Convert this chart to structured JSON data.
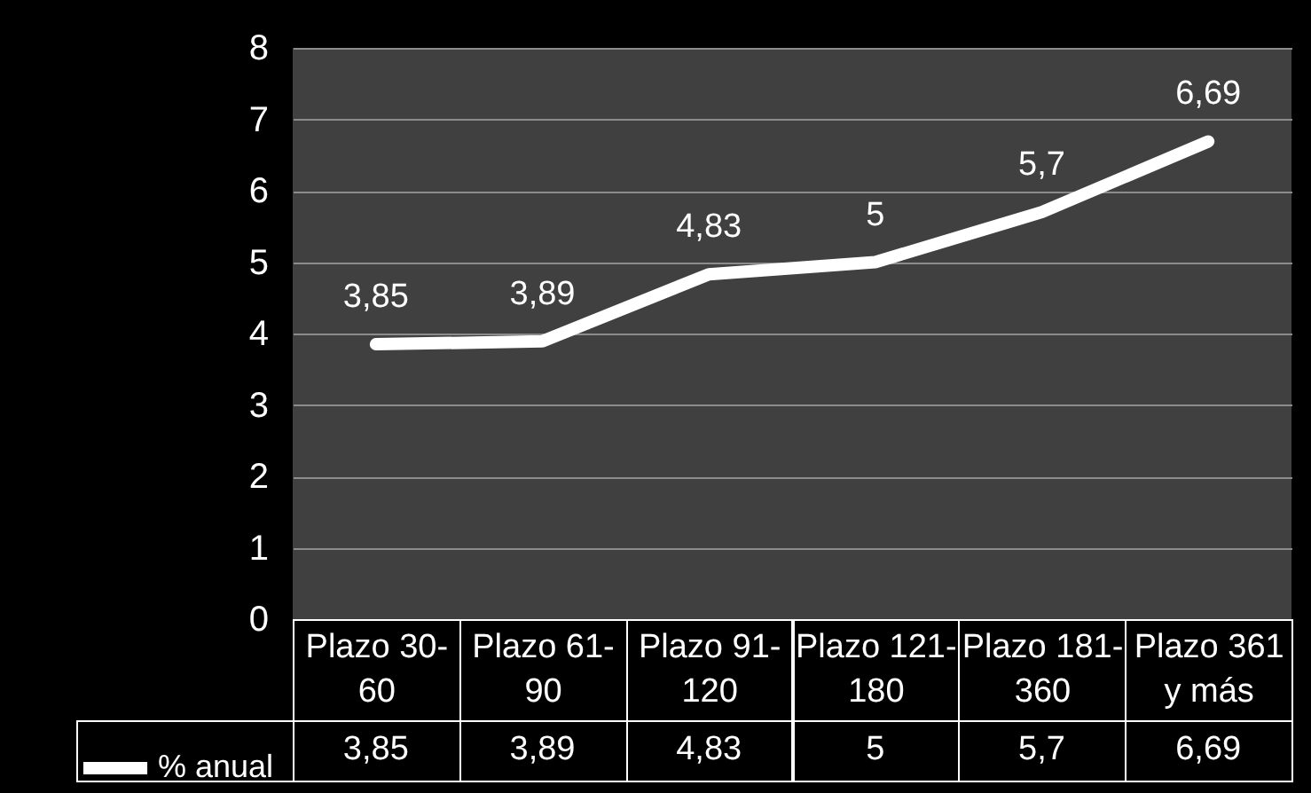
{
  "chart_data": {
    "type": "line",
    "categories": [
      "Plazo 30-60",
      "Plazo 61-90",
      "Plazo 91-120",
      "Plazo 121-180",
      "Plazo 181-360",
      "Plazo 361 y más"
    ],
    "series": [
      {
        "name": "% anual",
        "color": "#ffffff",
        "values": [
          3.85,
          3.89,
          4.83,
          5,
          5.7,
          6.69
        ],
        "value_labels": [
          "3,85",
          "3,89",
          "4,83",
          "5",
          "5,7",
          "6,69"
        ]
      }
    ],
    "ylim": [
      0,
      8
    ],
    "yticks": [
      0,
      1,
      2,
      3,
      4,
      5,
      6,
      7,
      8
    ],
    "grid": "y",
    "legend": "bottom",
    "marker": "none",
    "line_style": "solid"
  }
}
